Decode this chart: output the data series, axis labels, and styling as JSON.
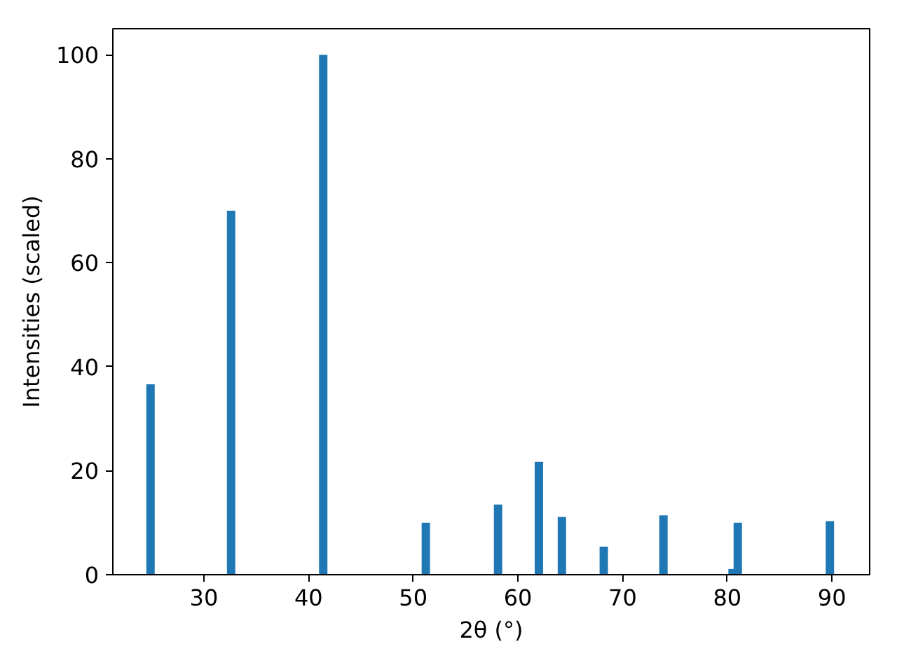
{
  "chart_data": {
    "type": "bar",
    "xlabel": "2θ (°)",
    "ylabel": "Intensities (scaled)",
    "x": [
      24.9,
      32.6,
      41.4,
      51.2,
      58.1,
      62.0,
      64.2,
      68.2,
      73.9,
      80.5,
      81.0,
      89.8
    ],
    "values": [
      36.6,
      70,
      100,
      10,
      13.5,
      21.7,
      11.1,
      5.4,
      11.4,
      1.1,
      10,
      10.3
    ],
    "color": "#1f77b4",
    "xlim": [
      21.3,
      93.6
    ],
    "ylim": [
      0,
      105
    ],
    "xticks": [
      30,
      40,
      50,
      60,
      70,
      80,
      90
    ],
    "yticks": [
      0,
      20,
      40,
      60,
      80,
      100
    ],
    "grid": false
  }
}
